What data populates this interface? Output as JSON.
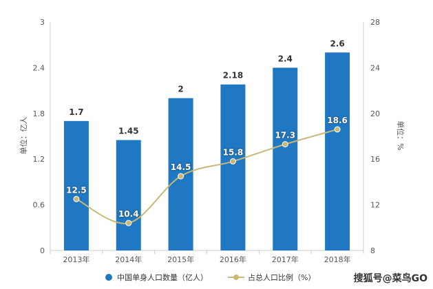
{
  "chart_data": {
    "type": "bar",
    "categories": [
      "2013年",
      "2014年",
      "2015年",
      "2016年",
      "2017年",
      "2018年"
    ],
    "series": [
      {
        "name": "中国单身人口数量（亿人）",
        "kind": "bar",
        "axis": "left",
        "color": "#1f78c1",
        "values": [
          1.7,
          1.45,
          2,
          2.18,
          2.4,
          2.6
        ],
        "labels": [
          "1.7",
          "1.45",
          "2",
          "2.18",
          "2.4",
          "2.6"
        ]
      },
      {
        "name": "占总人口比例（%）",
        "kind": "line",
        "axis": "right",
        "color": "#c8b878",
        "values": [
          12.5,
          10.4,
          14.5,
          15.8,
          17.3,
          18.6
        ],
        "labels": [
          "12.5",
          "10.4",
          "14.5",
          "15.8",
          "17.3",
          "18.6"
        ]
      }
    ],
    "ylabel": "单位：亿人",
    "ylabel_right": "单位：%",
    "ylim": [
      0,
      3
    ],
    "ylim_right": [
      8,
      28
    ],
    "yticks": [
      "0",
      "0.6",
      "1.2",
      "1.8",
      "2.4",
      "3"
    ],
    "yticks_right": [
      "8",
      "12",
      "16",
      "20",
      "24",
      "28"
    ],
    "legend_position": "bottom",
    "grid": false
  },
  "watermark": "搜狐号@菜鸟GO"
}
